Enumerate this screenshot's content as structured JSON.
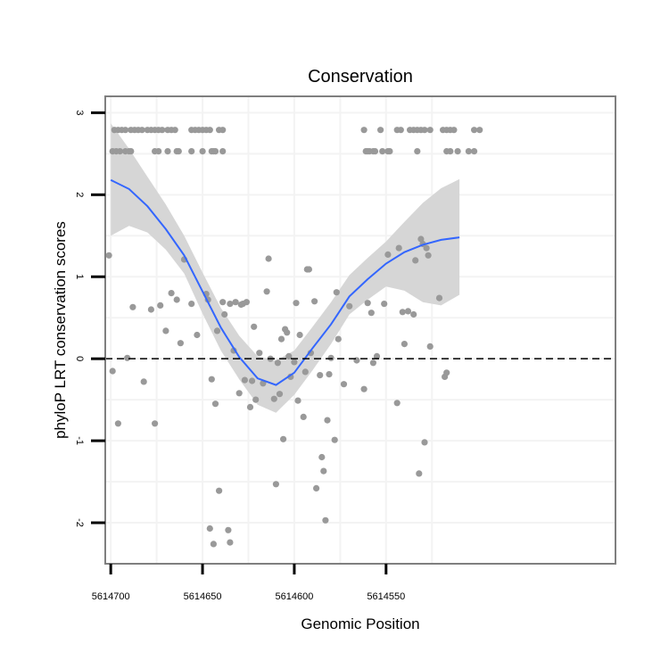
{
  "chart_data": {
    "type": "scatter",
    "title": "Conservation",
    "xlabel": "Genomic Position",
    "ylabel": "phyloP LRT conservation scores",
    "x_reversed": true,
    "xlim": [
      5614703,
      5614425
    ],
    "ylim": [
      -2.5,
      3.2
    ],
    "x_ticks": [
      5614700,
      5614650,
      5614600,
      5614550
    ],
    "x_tick_labels": [
      "5614700",
      "5614650",
      "5614600",
      "5614550"
    ],
    "y_ticks": [
      -2,
      -1,
      0,
      1,
      2,
      3
    ],
    "y_tick_labels": [
      "-2",
      "-1",
      "0",
      "1",
      "2",
      "3"
    ],
    "grid": true,
    "reference_line": {
      "y": 0,
      "style": "dashed"
    },
    "colors": {
      "points": "#999999",
      "smooth_line": "#3366ff",
      "confidence_band": "#d6d6d6",
      "panel_border": "#7f7f7f",
      "grid": "#f3f3f3",
      "reference_line": "#000000"
    },
    "points": [
      [
        5614699,
        2.53
      ],
      [
        5614697,
        2.53
      ],
      [
        5614695,
        2.53
      ],
      [
        5614692,
        2.53
      ],
      [
        5614690,
        2.53
      ],
      [
        5614689,
        2.53
      ],
      [
        5614676,
        2.53
      ],
      [
        5614674,
        2.53
      ],
      [
        5614669,
        2.53
      ],
      [
        5614664,
        2.53
      ],
      [
        5614663,
        2.53
      ],
      [
        5614656,
        2.53
      ],
      [
        5614650,
        2.53
      ],
      [
        5614645,
        2.53
      ],
      [
        5614644,
        2.53
      ],
      [
        5614643,
        2.53
      ],
      [
        5614639,
        2.53
      ],
      [
        5614561,
        2.53
      ],
      [
        5614560,
        2.53
      ],
      [
        5614559,
        2.53
      ],
      [
        5614557,
        2.53
      ],
      [
        5614556,
        2.53
      ],
      [
        5614552,
        2.53
      ],
      [
        5614549,
        2.53
      ],
      [
        5614548,
        2.53
      ],
      [
        5614533,
        2.53
      ],
      [
        5614517,
        2.53
      ],
      [
        5614515,
        2.53
      ],
      [
        5614511,
        2.53
      ],
      [
        5614505,
        2.53
      ],
      [
        5614502,
        2.53
      ],
      [
        5614698,
        2.79
      ],
      [
        5614696,
        2.79
      ],
      [
        5614694,
        2.79
      ],
      [
        5614692,
        2.79
      ],
      [
        5614689,
        2.79
      ],
      [
        5614687,
        2.79
      ],
      [
        5614685,
        2.79
      ],
      [
        5614683,
        2.79
      ],
      [
        5614680,
        2.79
      ],
      [
        5614678,
        2.79
      ],
      [
        5614676,
        2.79
      ],
      [
        5614674,
        2.79
      ],
      [
        5614672,
        2.79
      ],
      [
        5614669,
        2.79
      ],
      [
        5614667,
        2.79
      ],
      [
        5614665,
        2.79
      ],
      [
        5614656,
        2.79
      ],
      [
        5614654,
        2.79
      ],
      [
        5614652,
        2.79
      ],
      [
        5614650,
        2.79
      ],
      [
        5614648,
        2.79
      ],
      [
        5614646,
        2.79
      ],
      [
        5614641,
        2.79
      ],
      [
        5614639,
        2.79
      ],
      [
        5614562,
        2.79
      ],
      [
        5614553,
        2.79
      ],
      [
        5614544,
        2.79
      ],
      [
        5614542,
        2.79
      ],
      [
        5614537,
        2.79
      ],
      [
        5614535,
        2.79
      ],
      [
        5614533,
        2.79
      ],
      [
        5614531,
        2.79
      ],
      [
        5614529,
        2.79
      ],
      [
        5614526,
        2.79
      ],
      [
        5614519,
        2.79
      ],
      [
        5614517,
        2.79
      ],
      [
        5614515,
        2.79
      ],
      [
        5614513,
        2.79
      ],
      [
        5614502,
        2.79
      ],
      [
        5614499,
        2.79
      ],
      [
        5614701,
        1.26
      ],
      [
        5614699,
        -0.15
      ],
      [
        5614696,
        -0.79
      ],
      [
        5614691,
        0.01
      ],
      [
        5614688,
        0.63
      ],
      [
        5614682,
        -0.28
      ],
      [
        5614678,
        0.6
      ],
      [
        5614676,
        -0.79
      ],
      [
        5614673,
        0.65
      ],
      [
        5614670,
        0.34
      ],
      [
        5614667,
        0.8
      ],
      [
        5614664,
        0.72
      ],
      [
        5614662,
        0.19
      ],
      [
        5614660,
        1.21
      ],
      [
        5614656,
        0.67
      ],
      [
        5614653,
        0.29
      ],
      [
        5614648,
        0.79
      ],
      [
        5614647,
        0.72
      ],
      [
        5614645,
        -0.25
      ],
      [
        5614643,
        -0.55
      ],
      [
        5614642,
        0.34
      ],
      [
        5614641,
        -1.61
      ],
      [
        5614639,
        0.69
      ],
      [
        5614638,
        0.54
      ],
      [
        5614646,
        -2.07
      ],
      [
        5614644,
        -2.26
      ],
      [
        5614636,
        -2.09
      ],
      [
        5614635,
        -2.24
      ],
      [
        5614635,
        0.67
      ],
      [
        5614633,
        0.1
      ],
      [
        5614632,
        0.69
      ],
      [
        5614630,
        -0.42
      ],
      [
        5614629,
        0.66
      ],
      [
        5614628,
        0.67
      ],
      [
        5614627,
        -0.26
      ],
      [
        5614626,
        0.69
      ],
      [
        5614624,
        -0.59
      ],
      [
        5614623,
        -0.27
      ],
      [
        5614622,
        0.39
      ],
      [
        5614621,
        -0.5
      ],
      [
        5614619,
        0.07
      ],
      [
        5614617,
        -0.3
      ],
      [
        5614615,
        0.82
      ],
      [
        5614614,
        1.22
      ],
      [
        5614613,
        0.0
      ],
      [
        5614611,
        -0.49
      ],
      [
        5614610,
        -1.53
      ],
      [
        5614609,
        -0.05
      ],
      [
        5614608,
        -0.43
      ],
      [
        5614607,
        0.24
      ],
      [
        5614606,
        -0.98
      ],
      [
        5614605,
        0.36
      ],
      [
        5614604,
        0.32
      ],
      [
        5614603,
        0.03
      ],
      [
        5614602,
        -0.22
      ],
      [
        5614600,
        -0.04
      ],
      [
        5614599,
        0.68
      ],
      [
        5614598,
        -0.51
      ],
      [
        5614597,
        0.29
      ],
      [
        5614595,
        -0.71
      ],
      [
        5614594,
        -0.16
      ],
      [
        5614593,
        1.09
      ],
      [
        5614592,
        1.09
      ],
      [
        5614591,
        0.07
      ],
      [
        5614589,
        0.7
      ],
      [
        5614588,
        -1.58
      ],
      [
        5614586,
        -0.2
      ],
      [
        5614585,
        -1.2
      ],
      [
        5614584,
        -1.37
      ],
      [
        5614583,
        -1.97
      ],
      [
        5614582,
        -0.75
      ],
      [
        5614581,
        -0.19
      ],
      [
        5614580,
        0.01
      ],
      [
        5614578,
        -0.99
      ],
      [
        5614577,
        0.81
      ],
      [
        5614576,
        0.24
      ],
      [
        5614573,
        -0.31
      ],
      [
        5614570,
        0.64
      ],
      [
        5614566,
        -0.02
      ],
      [
        5614562,
        -0.37
      ],
      [
        5614560,
        0.68
      ],
      [
        5614558,
        0.56
      ],
      [
        5614557,
        -0.05
      ],
      [
        5614555,
        0.03
      ],
      [
        5614551,
        0.67
      ],
      [
        5614549,
        1.27
      ],
      [
        5614544,
        -0.54
      ],
      [
        5614543,
        1.35
      ],
      [
        5614541,
        0.57
      ],
      [
        5614538,
        0.58
      ],
      [
        5614540,
        0.18
      ],
      [
        5614535,
        0.54
      ],
      [
        5614534,
        1.2
      ],
      [
        5614532,
        -1.4
      ],
      [
        5614531,
        1.46
      ],
      [
        5614530,
        1.4
      ],
      [
        5614529,
        -1.02
      ],
      [
        5614528,
        1.35
      ],
      [
        5614527,
        1.26
      ],
      [
        5614526,
        0.15
      ],
      [
        5614521,
        0.74
      ],
      [
        5614518,
        -0.22
      ],
      [
        5614517,
        -0.17
      ]
    ],
    "smooth_line": [
      [
        5614700,
        2.18
      ],
      [
        5614690,
        2.07
      ],
      [
        5614680,
        1.86
      ],
      [
        5614670,
        1.58
      ],
      [
        5614660,
        1.26
      ],
      [
        5614650,
        0.82
      ],
      [
        5614640,
        0.38
      ],
      [
        5614630,
        0.02
      ],
      [
        5614620,
        -0.24
      ],
      [
        5614610,
        -0.32
      ],
      [
        5614600,
        -0.17
      ],
      [
        5614590,
        0.13
      ],
      [
        5614580,
        0.42
      ],
      [
        5614570,
        0.76
      ],
      [
        5614560,
        0.97
      ],
      [
        5614550,
        1.16
      ],
      [
        5614540,
        1.3
      ],
      [
        5614530,
        1.39
      ],
      [
        5614520,
        1.45
      ],
      [
        5614510,
        1.48
      ]
    ],
    "confidence_band": [
      [
        5614700,
        1.5,
        2.87
      ],
      [
        5614690,
        1.62,
        2.56
      ],
      [
        5614680,
        1.54,
        2.22
      ],
      [
        5614670,
        1.33,
        1.88
      ],
      [
        5614660,
        1.04,
        1.5
      ],
      [
        5614650,
        0.55,
        1.05
      ],
      [
        5614640,
        0.1,
        0.62
      ],
      [
        5614630,
        -0.25,
        0.28
      ],
      [
        5614620,
        -0.56,
        0.03
      ],
      [
        5614610,
        -0.66,
        -0.02
      ],
      [
        5614600,
        -0.44,
        0.1
      ],
      [
        5614590,
        -0.14,
        0.39
      ],
      [
        5614580,
        0.18,
        0.69
      ],
      [
        5614570,
        0.54,
        1.02
      ],
      [
        5614560,
        0.72,
        1.23
      ],
      [
        5614550,
        0.88,
        1.43
      ],
      [
        5614540,
        0.83,
        1.67
      ],
      [
        5614530,
        0.69,
        1.9
      ],
      [
        5614520,
        0.65,
        2.08
      ],
      [
        5614510,
        0.78,
        2.19
      ]
    ]
  }
}
